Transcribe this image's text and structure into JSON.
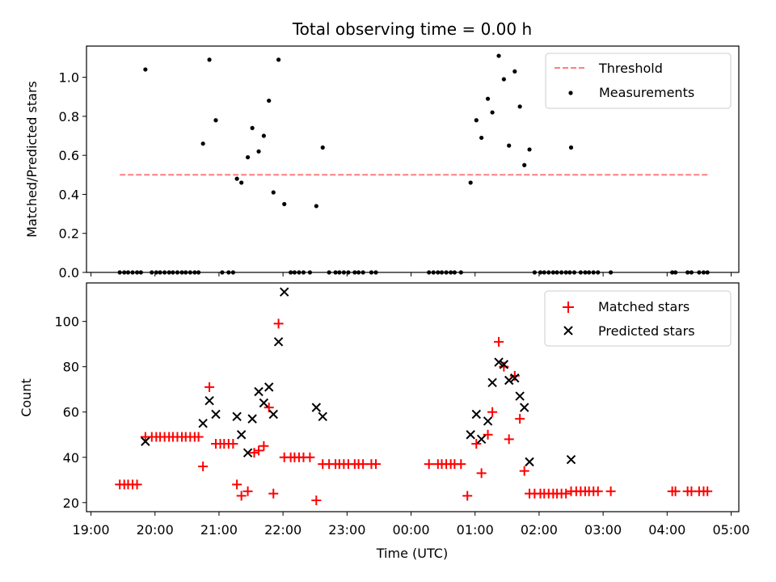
{
  "chart_data": [
    {
      "type": "scatter",
      "title": "Total observing time = 0.00 h",
      "xlabel": "",
      "ylabel": "Matched/Predicted stars",
      "ylim": [
        0,
        1.16
      ],
      "xlim_hours": [
        18.93,
        29.12
      ],
      "yticks": [
        "0.0",
        "0.2",
        "0.4",
        "0.6",
        "0.8",
        "1.0"
      ],
      "ytick_values": [
        0,
        0.2,
        0.4,
        0.6,
        0.8,
        1.0
      ],
      "legend_position": "top-right",
      "threshold": {
        "name": "Threshold",
        "value": 0.5,
        "x_range": [
          19.45,
          28.63
        ],
        "color": "#ff7f7f",
        "style": "dashed"
      },
      "series": [
        {
          "name": "Measurements",
          "marker": "dot",
          "color": "#000000",
          "points": [
            [
              19.45,
              0
            ],
            [
              19.52,
              0
            ],
            [
              19.58,
              0
            ],
            [
              19.65,
              0
            ],
            [
              19.72,
              0
            ],
            [
              19.78,
              0
            ],
            [
              19.85,
              1.04
            ],
            [
              19.95,
              0
            ],
            [
              20.02,
              0
            ],
            [
              20.08,
              0
            ],
            [
              20.15,
              0
            ],
            [
              20.22,
              0
            ],
            [
              20.28,
              0
            ],
            [
              20.35,
              0
            ],
            [
              20.42,
              0
            ],
            [
              20.48,
              0
            ],
            [
              20.55,
              0
            ],
            [
              20.62,
              0
            ],
            [
              20.68,
              0
            ],
            [
              20.75,
              0.66
            ],
            [
              20.85,
              1.09
            ],
            [
              20.95,
              0.78
            ],
            [
              21.05,
              0
            ],
            [
              21.15,
              0
            ],
            [
              21.22,
              0
            ],
            [
              21.28,
              0.48
            ],
            [
              21.35,
              0.46
            ],
            [
              21.45,
              0.59
            ],
            [
              21.52,
              0.74
            ],
            [
              21.62,
              0.62
            ],
            [
              21.7,
              0.7
            ],
            [
              21.78,
              0.88
            ],
            [
              21.85,
              0.41
            ],
            [
              21.93,
              1.09
            ],
            [
              22.02,
              0.35
            ],
            [
              22.12,
              0
            ],
            [
              22.18,
              0
            ],
            [
              22.25,
              0
            ],
            [
              22.32,
              0
            ],
            [
              22.42,
              0
            ],
            [
              22.52,
              0.34
            ],
            [
              22.62,
              0.64
            ],
            [
              22.72,
              0
            ],
            [
              22.82,
              0
            ],
            [
              22.88,
              0
            ],
            [
              22.95,
              0
            ],
            [
              23.02,
              0
            ],
            [
              23.12,
              0
            ],
            [
              23.18,
              0
            ],
            [
              23.25,
              0
            ],
            [
              23.38,
              0
            ],
            [
              23.45,
              0
            ],
            [
              24.28,
              0
            ],
            [
              24.35,
              0
            ],
            [
              24.42,
              0
            ],
            [
              24.48,
              0
            ],
            [
              24.55,
              0
            ],
            [
              24.62,
              0
            ],
            [
              24.68,
              0
            ],
            [
              24.78,
              0
            ],
            [
              24.93,
              0.46
            ],
            [
              25.02,
              0.78
            ],
            [
              25.1,
              0.69
            ],
            [
              25.2,
              0.89
            ],
            [
              25.27,
              0.82
            ],
            [
              25.37,
              1.11
            ],
            [
              25.45,
              0.99
            ],
            [
              25.53,
              0.65
            ],
            [
              25.62,
              1.03
            ],
            [
              25.7,
              0.85
            ],
            [
              25.77,
              0.55
            ],
            [
              25.85,
              0.63
            ],
            [
              25.93,
              0
            ],
            [
              26.02,
              0
            ],
            [
              26.08,
              0
            ],
            [
              26.15,
              0
            ],
            [
              26.22,
              0
            ],
            [
              26.28,
              0
            ],
            [
              26.35,
              0
            ],
            [
              26.42,
              0
            ],
            [
              26.48,
              0
            ],
            [
              26.55,
              0
            ],
            [
              26.65,
              0
            ],
            [
              26.72,
              0
            ],
            [
              26.78,
              0
            ],
            [
              26.85,
              0
            ],
            [
              26.92,
              0
            ],
            [
              27.12,
              0
            ],
            [
              28.08,
              0
            ],
            [
              28.13,
              0
            ],
            [
              28.32,
              0
            ],
            [
              28.38,
              0
            ],
            [
              28.5,
              0
            ],
            [
              28.57,
              0
            ],
            [
              28.63,
              0
            ],
            [
              26.5,
              0.64
            ]
          ]
        }
      ]
    },
    {
      "type": "scatter",
      "title": "",
      "xlabel": "Time (UTC)",
      "ylabel": "Count",
      "ylim": [
        16,
        117
      ],
      "xlim_hours": [
        18.93,
        29.12
      ],
      "yticks": [
        "20",
        "40",
        "60",
        "80",
        "100"
      ],
      "ytick_values": [
        20,
        40,
        60,
        80,
        100
      ],
      "xticks": [
        "19:00",
        "20:00",
        "21:00",
        "22:00",
        "23:00",
        "00:00",
        "01:00",
        "02:00",
        "03:00",
        "04:00",
        "05:00"
      ],
      "xtick_hours": [
        19,
        20,
        21,
        22,
        23,
        24,
        25,
        26,
        27,
        28,
        29
      ],
      "legend_position": "top-right",
      "series": [
        {
          "name": "Matched stars",
          "marker": "plus",
          "color": "#ff0000",
          "points": [
            [
              19.45,
              28
            ],
            [
              19.52,
              28
            ],
            [
              19.58,
              28
            ],
            [
              19.65,
              28
            ],
            [
              19.72,
              28
            ],
            [
              19.85,
              49
            ],
            [
              19.95,
              49
            ],
            [
              20.02,
              49
            ],
            [
              20.08,
              49
            ],
            [
              20.15,
              49
            ],
            [
              20.22,
              49
            ],
            [
              20.28,
              49
            ],
            [
              20.35,
              49
            ],
            [
              20.42,
              49
            ],
            [
              20.48,
              49
            ],
            [
              20.55,
              49
            ],
            [
              20.62,
              49
            ],
            [
              20.68,
              49
            ],
            [
              20.75,
              36
            ],
            [
              20.85,
              71
            ],
            [
              20.95,
              46
            ],
            [
              21.02,
              46
            ],
            [
              21.08,
              46
            ],
            [
              21.15,
              46
            ],
            [
              21.22,
              46
            ],
            [
              21.28,
              28
            ],
            [
              21.35,
              23
            ],
            [
              21.45,
              25
            ],
            [
              21.55,
              42
            ],
            [
              21.62,
              43
            ],
            [
              21.7,
              45
            ],
            [
              21.78,
              62
            ],
            [
              21.85,
              24
            ],
            [
              21.93,
              99
            ],
            [
              22.02,
              40
            ],
            [
              22.12,
              40
            ],
            [
              22.18,
              40
            ],
            [
              22.25,
              40
            ],
            [
              22.32,
              40
            ],
            [
              22.42,
              40
            ],
            [
              22.52,
              21
            ],
            [
              22.62,
              37
            ],
            [
              22.72,
              37
            ],
            [
              22.82,
              37
            ],
            [
              22.88,
              37
            ],
            [
              22.95,
              37
            ],
            [
              23.02,
              37
            ],
            [
              23.12,
              37
            ],
            [
              23.18,
              37
            ],
            [
              23.25,
              37
            ],
            [
              23.38,
              37
            ],
            [
              23.45,
              37
            ],
            [
              24.28,
              37
            ],
            [
              24.42,
              37
            ],
            [
              24.48,
              37
            ],
            [
              24.55,
              37
            ],
            [
              24.62,
              37
            ],
            [
              24.68,
              37
            ],
            [
              24.78,
              37
            ],
            [
              24.88,
              23
            ],
            [
              25.02,
              46
            ],
            [
              25.1,
              33
            ],
            [
              25.2,
              50
            ],
            [
              25.27,
              60
            ],
            [
              25.37,
              91
            ],
            [
              25.45,
              80
            ],
            [
              25.53,
              48
            ],
            [
              25.62,
              76
            ],
            [
              25.7,
              57
            ],
            [
              25.77,
              34
            ],
            [
              25.85,
              24
            ],
            [
              25.93,
              24
            ],
            [
              26.02,
              24
            ],
            [
              26.08,
              24
            ],
            [
              26.15,
              24
            ],
            [
              26.22,
              24
            ],
            [
              26.28,
              24
            ],
            [
              26.35,
              24
            ],
            [
              26.42,
              24
            ],
            [
              26.5,
              25
            ],
            [
              26.58,
              25
            ],
            [
              26.65,
              25
            ],
            [
              26.72,
              25
            ],
            [
              26.78,
              25
            ],
            [
              26.85,
              25
            ],
            [
              26.92,
              25
            ],
            [
              27.12,
              25
            ],
            [
              28.08,
              25
            ],
            [
              28.13,
              25
            ],
            [
              28.32,
              25
            ],
            [
              28.38,
              25
            ],
            [
              28.5,
              25
            ],
            [
              28.57,
              25
            ],
            [
              28.63,
              25
            ]
          ]
        },
        {
          "name": "Predicted stars",
          "marker": "x",
          "color": "#000000",
          "points": [
            [
              19.85,
              47
            ],
            [
              20.75,
              55
            ],
            [
              20.85,
              65
            ],
            [
              20.95,
              59
            ],
            [
              21.28,
              58
            ],
            [
              21.35,
              50
            ],
            [
              21.45,
              42
            ],
            [
              21.52,
              57
            ],
            [
              21.62,
              69
            ],
            [
              21.7,
              64
            ],
            [
              21.78,
              71
            ],
            [
              21.85,
              59
            ],
            [
              21.93,
              91
            ],
            [
              22.02,
              113
            ],
            [
              22.52,
              62
            ],
            [
              22.62,
              58
            ],
            [
              24.93,
              50
            ],
            [
              25.02,
              59
            ],
            [
              25.1,
              48
            ],
            [
              25.2,
              56
            ],
            [
              25.27,
              73
            ],
            [
              25.37,
              82
            ],
            [
              25.45,
              81
            ],
            [
              25.53,
              74
            ],
            [
              25.62,
              75
            ],
            [
              25.7,
              67
            ],
            [
              25.77,
              62
            ],
            [
              25.85,
              38
            ],
            [
              26.5,
              39
            ]
          ]
        }
      ]
    }
  ]
}
